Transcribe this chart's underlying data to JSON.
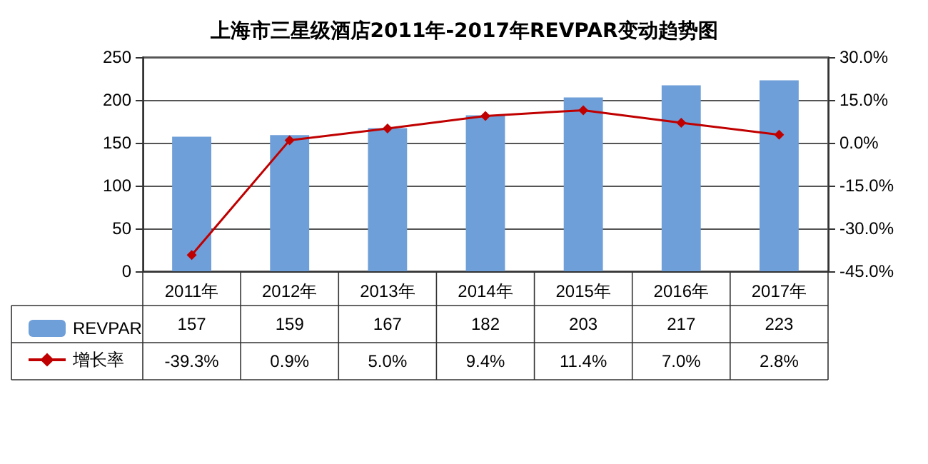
{
  "chart_data": {
    "type": "bar",
    "title": "上海市三星级酒店2011年-2017年REVPAR变动趋势图",
    "categories": [
      "2011年",
      "2012年",
      "2013年",
      "2014年",
      "2015年",
      "2016年",
      "2017年"
    ],
    "series": [
      {
        "name": "REVPAR",
        "color": "#6f9fd8",
        "values": [
          157,
          159,
          167,
          182,
          203,
          217,
          223
        ],
        "value_labels": [
          "157",
          "159",
          "167",
          "182",
          "203",
          "217",
          "223"
        ]
      },
      {
        "name": "增长率",
        "type": "line",
        "axis": "y2",
        "color": "#c00000",
        "marker": "diamond",
        "values": [
          -39.3,
          0.9,
          5.0,
          9.4,
          11.4,
          7.0,
          2.8
        ],
        "value_labels": [
          "-39.3%",
          "0.9%",
          "5.0%",
          "9.4%",
          "11.4%",
          "7.0%",
          "2.8%"
        ]
      }
    ],
    "ylim": [
      0,
      250
    ],
    "yticks": [
      0,
      50,
      100,
      150,
      200,
      250
    ],
    "y2lim": [
      -45,
      30
    ],
    "y2ticks": [
      {
        "value": -45,
        "label": "-45.0%"
      },
      {
        "value": -30,
        "label": "-30.0%"
      },
      {
        "value": -15,
        "label": "-15.0%"
      },
      {
        "value": 0,
        "label": "0.0%"
      },
      {
        "value": 15,
        "label": "15.0%"
      },
      {
        "value": 30,
        "label": "30.0%"
      }
    ],
    "grid": "y",
    "legend": "bottom left"
  }
}
